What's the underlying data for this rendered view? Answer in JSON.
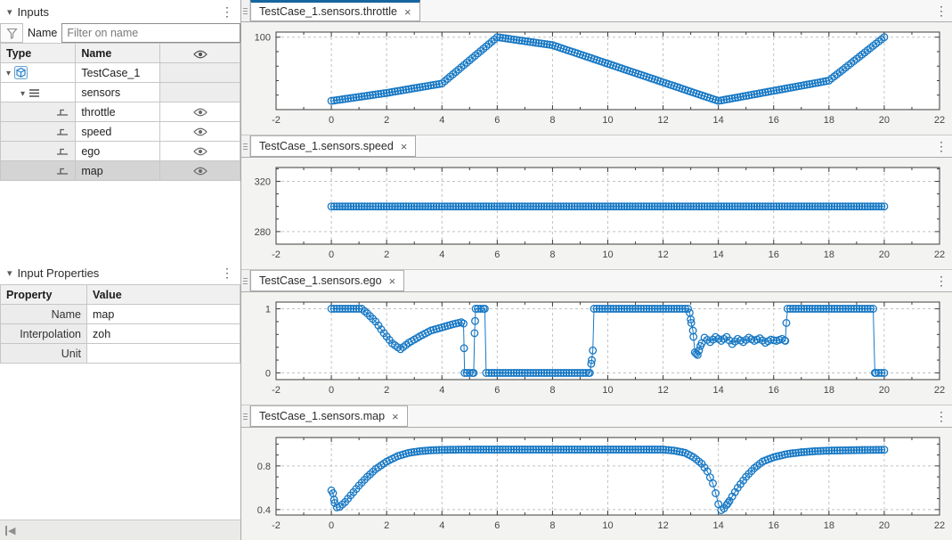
{
  "ui": {
    "kebab_glyph": "⋮",
    "close_glyph": "×",
    "collapse_triangle": "▾",
    "collapse_left_glyph": "◀"
  },
  "colors": {
    "series_blue": "#1778c4",
    "active_tab_border": "#15659f",
    "grid_line": "#c2c2c2",
    "axis_line": "#3c3c3c",
    "tick_label": "#464646",
    "icon_gray": "#666666",
    "selected_row": "#d4d4d4"
  },
  "inputs_panel": {
    "title": "Inputs",
    "filter": {
      "label": "Name",
      "placeholder": "Filter on name",
      "value": ""
    },
    "table": {
      "headers": {
        "type": "Type",
        "name": "Name",
        "visibility": "eye-icon"
      },
      "rows": [
        {
          "name": "TestCase_1",
          "kind": "group",
          "level": 0,
          "icon": "testcase-cube-icon",
          "expanded": true,
          "visible": null,
          "selected": false
        },
        {
          "name": "sensors",
          "kind": "group",
          "level": 1,
          "icon": "bus-icon",
          "expanded": true,
          "visible": null,
          "selected": false
        },
        {
          "name": "throttle",
          "kind": "leaf",
          "level": 2,
          "icon": "signal-icon",
          "expanded": null,
          "visible": true,
          "selected": false
        },
        {
          "name": "speed",
          "kind": "leaf",
          "level": 2,
          "icon": "signal-icon",
          "expanded": null,
          "visible": true,
          "selected": false
        },
        {
          "name": "ego",
          "kind": "leaf",
          "level": 2,
          "icon": "signal-icon",
          "expanded": null,
          "visible": true,
          "selected": false
        },
        {
          "name": "map",
          "kind": "leaf",
          "level": 2,
          "icon": "signal-icon",
          "expanded": null,
          "visible": true,
          "selected": true
        }
      ]
    }
  },
  "properties_panel": {
    "title": "Input Properties",
    "headers": {
      "property": "Property",
      "value": "Value"
    },
    "rows": [
      {
        "property": "Name",
        "value": "map"
      },
      {
        "property": "Interpolation",
        "value": "zoh"
      },
      {
        "property": "Unit",
        "value": ""
      }
    ]
  },
  "chart_data": [
    {
      "type": "scatter",
      "tab_label": "TestCase_1.sensors.throttle",
      "active_tab": true,
      "xlim": [
        -2,
        22
      ],
      "ylim": [
        0,
        107
      ],
      "xticks": [
        -2,
        0,
        2,
        4,
        6,
        8,
        10,
        12,
        14,
        16,
        18,
        20,
        22
      ],
      "xminor_step": 1,
      "ygrid": [
        100
      ],
      "yticklabels": [
        "100"
      ],
      "yminor_step": 20,
      "grid": "dashed",
      "marker": "hollow-circle",
      "sample_step": 0.1,
      "breakpoints": [
        [
          0,
          12
        ],
        [
          2,
          23
        ],
        [
          4,
          36
        ],
        [
          6,
          100
        ],
        [
          8,
          89
        ],
        [
          14,
          12
        ],
        [
          18,
          40
        ],
        [
          20,
          100
        ]
      ]
    },
    {
      "type": "scatter",
      "tab_label": "TestCase_1.sensors.speed",
      "active_tab": false,
      "xlim": [
        -2,
        22
      ],
      "ylim": [
        270,
        331
      ],
      "xticks": [
        -2,
        0,
        2,
        4,
        6,
        8,
        10,
        12,
        14,
        16,
        18,
        20,
        22
      ],
      "xminor_step": 1,
      "ygrid": [
        280,
        320
      ],
      "yticklabels": [
        "280",
        "320"
      ],
      "yminor_step": 10,
      "grid": "dashed",
      "marker": "hollow-circle",
      "sample_step": 0.1,
      "breakpoints": [
        [
          0,
          300
        ],
        [
          20,
          300
        ]
      ]
    },
    {
      "type": "scatter",
      "tab_label": "TestCase_1.sensors.ego",
      "active_tab": false,
      "xlim": [
        -2,
        22
      ],
      "ylim": [
        -0.105,
        1.105
      ],
      "xticks": [
        -2,
        0,
        2,
        4,
        6,
        8,
        10,
        12,
        14,
        16,
        18,
        20,
        22
      ],
      "xminor_step": 1,
      "ygrid": [
        0,
        1
      ],
      "yticklabels": [
        "0",
        "1"
      ],
      "yminor_step": 0.2,
      "grid": "dashed",
      "marker": "hollow-circle",
      "sample_step": 0.1,
      "breakpoints": [
        [
          0,
          1
        ],
        [
          1.1,
          1
        ],
        [
          1.3,
          0.93
        ],
        [
          1.6,
          0.8
        ],
        [
          1.9,
          0.62
        ],
        [
          2.2,
          0.46
        ],
        [
          2.5,
          0.37
        ],
        [
          2.8,
          0.47
        ],
        [
          3.2,
          0.57
        ],
        [
          3.6,
          0.66
        ],
        [
          4,
          0.71
        ],
        [
          4.4,
          0.76
        ],
        [
          4.7,
          0.79
        ],
        [
          4.78,
          0.77
        ],
        [
          4.82,
          0
        ],
        [
          5.15,
          0
        ],
        [
          5.18,
          0.62
        ],
        [
          5.22,
          1
        ],
        [
          5.55,
          1
        ],
        [
          5.6,
          0
        ],
        [
          9.35,
          0
        ],
        [
          9.42,
          0.2
        ],
        [
          9.46,
          0.35
        ],
        [
          9.5,
          1
        ],
        [
          12.9,
          1
        ],
        [
          12.96,
          0.94
        ],
        [
          13.02,
          0.78
        ],
        [
          13.08,
          0.66
        ],
        [
          13.15,
          0.32
        ],
        [
          13.25,
          0.28
        ],
        [
          13.35,
          0.42
        ],
        [
          13.5,
          0.55
        ],
        [
          13.7,
          0.48
        ],
        [
          13.9,
          0.56
        ],
        [
          14.1,
          0.5
        ],
        [
          14.3,
          0.56
        ],
        [
          14.5,
          0.45
        ],
        [
          14.7,
          0.53
        ],
        [
          14.9,
          0.48
        ],
        [
          15.1,
          0.55
        ],
        [
          15.3,
          0.5
        ],
        [
          15.5,
          0.54
        ],
        [
          15.7,
          0.47
        ],
        [
          15.9,
          0.52
        ],
        [
          16.1,
          0.5
        ],
        [
          16.3,
          0.53
        ],
        [
          16.42,
          0.5
        ],
        [
          16.46,
          0.78
        ],
        [
          16.5,
          1
        ],
        [
          19.6,
          1
        ],
        [
          19.66,
          0
        ],
        [
          20,
          0
        ]
      ]
    },
    {
      "type": "scatter",
      "tab_label": "TestCase_1.sensors.map",
      "active_tab": false,
      "xlim": [
        -2,
        22
      ],
      "ylim": [
        0.35,
        1.06
      ],
      "xticks": [
        -2,
        0,
        2,
        4,
        6,
        8,
        10,
        12,
        14,
        16,
        18,
        20,
        22
      ],
      "xminor_step": 1,
      "ygrid": [
        0.4,
        0.8
      ],
      "yticklabels": [
        "0.4",
        "0.8"
      ],
      "yminor_step": 0.1,
      "grid": "dashed",
      "marker": "hollow-circle",
      "sample_step": 0.1,
      "breakpoints": [
        [
          0,
          0.575
        ],
        [
          0.06,
          0.55
        ],
        [
          0.12,
          0.46
        ],
        [
          0.2,
          0.42
        ],
        [
          0.3,
          0.425
        ],
        [
          0.5,
          0.47
        ],
        [
          0.7,
          0.53
        ],
        [
          1,
          0.62
        ],
        [
          1.3,
          0.7
        ],
        [
          1.6,
          0.77
        ],
        [
          2,
          0.84
        ],
        [
          2.4,
          0.89
        ],
        [
          2.8,
          0.92
        ],
        [
          3.2,
          0.935
        ],
        [
          3.6,
          0.943
        ],
        [
          4,
          0.947
        ],
        [
          5,
          0.95
        ],
        [
          12,
          0.95
        ],
        [
          12.4,
          0.94
        ],
        [
          12.8,
          0.92
        ],
        [
          13.1,
          0.88
        ],
        [
          13.4,
          0.82
        ],
        [
          13.6,
          0.75
        ],
        [
          13.8,
          0.64
        ],
        [
          13.9,
          0.55
        ],
        [
          14,
          0.45
        ],
        [
          14.1,
          0.395
        ],
        [
          14.2,
          0.41
        ],
        [
          14.35,
          0.46
        ],
        [
          14.5,
          0.52
        ],
        [
          14.7,
          0.6
        ],
        [
          15,
          0.7
        ],
        [
          15.3,
          0.78
        ],
        [
          15.6,
          0.84
        ],
        [
          16,
          0.88
        ],
        [
          16.5,
          0.91
        ],
        [
          17,
          0.925
        ],
        [
          17.5,
          0.935
        ],
        [
          18,
          0.94
        ],
        [
          19,
          0.945
        ],
        [
          20,
          0.948
        ]
      ]
    }
  ]
}
